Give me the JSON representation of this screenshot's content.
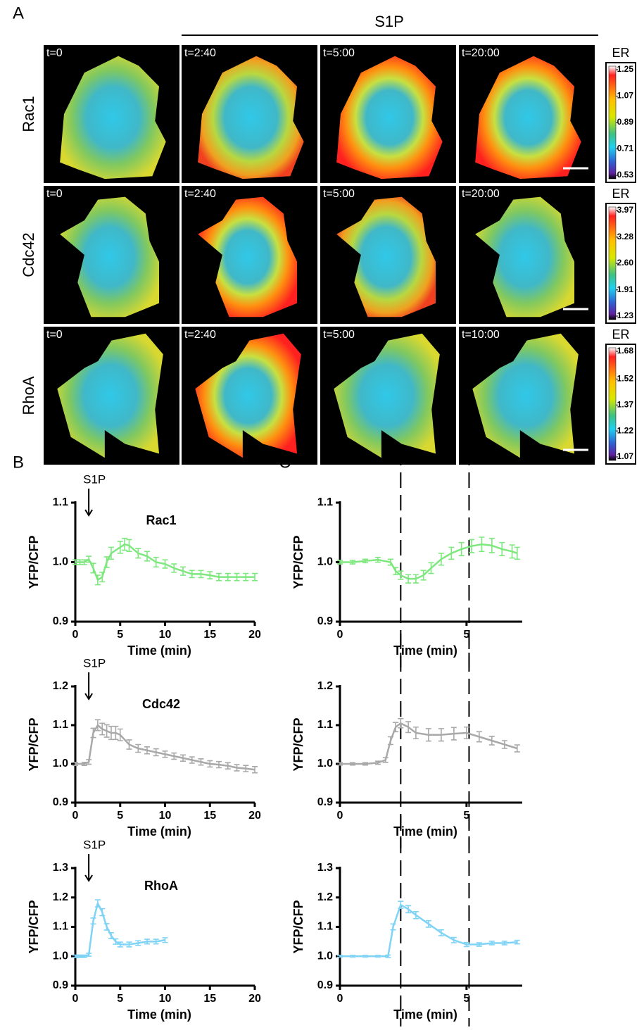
{
  "panel_a": {
    "label": "A",
    "treatment": "S1P",
    "rows": [
      {
        "name": "Rac1",
        "times": [
          "t=0",
          "t=2:40",
          "t=5:00",
          "t=20:00"
        ],
        "colorbar": {
          "title": "ER",
          "ticks": [
            0.53,
            0.71,
            0.89,
            1.07,
            1.25
          ]
        }
      },
      {
        "name": "Cdc42",
        "times": [
          "t=0",
          "t=2:40",
          "t=5:00",
          "t=20:00"
        ],
        "colorbar": {
          "title": "ER",
          "ticks": [
            1.23,
            1.91,
            {
              "value": 2.6,
              "label": "2.60"
            },
            3.28,
            3.97
          ]
        }
      },
      {
        "name": "RhoA",
        "times": [
          "t=0",
          "t=2:40",
          "t=5:00",
          "t=10:00"
        ],
        "colorbar": {
          "title": "ER",
          "ticks": [
            1.07,
            1.22,
            1.37,
            1.52,
            1.68
          ]
        }
      }
    ]
  },
  "panel_b_label": "B",
  "panel_c_label": "C",
  "chart_data": [
    {
      "type": "line",
      "title": "Rac1",
      "xlabel": "Time (min)",
      "ylabel": "YFP/CFP",
      "annotation": {
        "text": "S1P",
        "x": 1.5
      },
      "xlim": [
        0,
        20
      ],
      "xticks": [
        0,
        5,
        10,
        15,
        20
      ],
      "ylim": [
        0.9,
        1.1
      ],
      "yticks": [
        0.9,
        {
          "value": 1.0,
          "label": "1.0"
        },
        1.1
      ],
      "series": [
        {
          "color": "#7ee87e",
          "x": [
            0,
            0.5,
            1,
            1.5,
            2,
            2.5,
            3,
            3.5,
            4,
            5,
            5.5,
            6,
            7,
            8,
            9,
            10,
            11,
            12,
            13,
            14,
            15,
            16,
            17,
            18,
            19,
            20
          ],
          "values": [
            1.0,
            1.0,
            1.0,
            1.005,
            0.99,
            0.97,
            0.975,
            1.0,
            1.015,
            1.025,
            1.03,
            1.028,
            1.015,
            1.01,
            1.0,
            0.997,
            0.99,
            0.985,
            0.98,
            0.98,
            0.978,
            0.975,
            0.975,
            0.975,
            0.975,
            0.975
          ],
          "errors": [
            0.004,
            0.004,
            0.004,
            0.005,
            0.008,
            0.008,
            0.008,
            0.009,
            0.01,
            0.01,
            0.01,
            0.01,
            0.008,
            0.008,
            0.008,
            0.007,
            0.007,
            0.007,
            0.006,
            0.006,
            0.006,
            0.006,
            0.006,
            0.006,
            0.006,
            0.006
          ]
        }
      ]
    },
    {
      "type": "line",
      "xlabel": "Time (min)",
      "ylabel": "YFP/CFP",
      "vlines": [
        2.4,
        5.1
      ],
      "xlim": [
        0,
        7.2
      ],
      "xticks": [
        0,
        5
      ],
      "ylim": [
        0.9,
        1.1
      ],
      "yticks": [
        0.9,
        {
          "value": 1.0,
          "label": "1.0"
        },
        1.1
      ],
      "series": [
        {
          "color": "#7ee87e",
          "x": [
            0,
            0.5,
            1,
            1.5,
            2,
            2.2,
            2.4,
            2.7,
            3,
            3.3,
            3.6,
            4,
            4.4,
            4.8,
            5.2,
            5.6,
            6,
            6.4,
            6.8,
            7
          ],
          "values": [
            1.0,
            1.0,
            1.002,
            1.004,
            1.0,
            0.985,
            0.978,
            0.972,
            0.972,
            0.978,
            0.99,
            1.005,
            1.015,
            1.022,
            1.027,
            1.03,
            1.028,
            1.022,
            1.018,
            1.015
          ],
          "errors": [
            0.003,
            0.003,
            0.003,
            0.004,
            0.005,
            0.006,
            0.007,
            0.007,
            0.007,
            0.008,
            0.009,
            0.01,
            0.01,
            0.011,
            0.011,
            0.012,
            0.012,
            0.011,
            0.011,
            0.01
          ]
        }
      ]
    },
    {
      "type": "line",
      "title": "Cdc42",
      "xlabel": "Time (min)",
      "ylabel": "YFP/CFP",
      "annotation": {
        "text": "S1P",
        "x": 1.5
      },
      "xlim": [
        0,
        20
      ],
      "xticks": [
        0,
        5,
        10,
        15,
        20
      ],
      "ylim": [
        0.9,
        1.2
      ],
      "yticks": [
        0.9,
        {
          "value": 1.0,
          "label": "1.0"
        },
        1.1,
        1.2
      ],
      "series": [
        {
          "color": "#a9a9a9",
          "x": [
            0,
            1,
            1.5,
            2,
            2.5,
            3,
            3.5,
            4,
            4.5,
            5,
            6,
            7,
            8,
            9,
            10,
            11,
            12,
            13,
            14,
            15,
            16,
            17,
            18,
            19,
            20
          ],
          "values": [
            1.0,
            1.0,
            1.005,
            1.08,
            1.1,
            1.09,
            1.085,
            1.08,
            1.08,
            1.075,
            1.05,
            1.04,
            1.035,
            1.03,
            1.025,
            1.02,
            1.015,
            1.01,
            1.005,
            1.0,
            0.998,
            0.995,
            0.99,
            0.988,
            0.985
          ],
          "errors": [
            0.004,
            0.004,
            0.006,
            0.012,
            0.014,
            0.015,
            0.016,
            0.017,
            0.017,
            0.015,
            0.012,
            0.01,
            0.009,
            0.009,
            0.008,
            0.008,
            0.008,
            0.008,
            0.008,
            0.008,
            0.008,
            0.008,
            0.008,
            0.008,
            0.008
          ]
        }
      ]
    },
    {
      "type": "line",
      "xlabel": "Time (min)",
      "ylabel": "YFP/CFP",
      "vlines": [
        2.4,
        5.1
      ],
      "xlim": [
        0,
        7.2
      ],
      "xticks": [
        0,
        5
      ],
      "ylim": [
        0.9,
        1.2
      ],
      "yticks": [
        0.9,
        {
          "value": 1.0,
          "label": "1.0"
        },
        1.1,
        1.2
      ],
      "series": [
        {
          "color": "#a9a9a9",
          "x": [
            0,
            0.5,
            1,
            1.5,
            1.8,
            2,
            2.2,
            2.4,
            2.7,
            3,
            3.5,
            4,
            4.5,
            5,
            5.5,
            6,
            6.5,
            7
          ],
          "values": [
            1.0,
            1.0,
            1.0,
            1.003,
            1.01,
            1.06,
            1.095,
            1.105,
            1.095,
            1.08,
            1.075,
            1.075,
            1.078,
            1.08,
            1.07,
            1.06,
            1.05,
            1.04
          ],
          "errors": [
            0.003,
            0.003,
            0.003,
            0.004,
            0.006,
            0.01,
            0.012,
            0.012,
            0.014,
            0.015,
            0.016,
            0.016,
            0.016,
            0.015,
            0.013,
            0.011,
            0.01,
            0.009
          ]
        }
      ]
    },
    {
      "type": "line",
      "title": "RhoA",
      "xlabel": "Time (min)",
      "ylabel": "YFP/CFP",
      "annotation": {
        "text": "S1P",
        "x": 1.5
      },
      "xlim": [
        0,
        20
      ],
      "xticks": [
        0,
        5,
        10,
        15,
        20
      ],
      "ylim": [
        0.9,
        1.3
      ],
      "yticks": [
        0.9,
        {
          "value": 1.0,
          "label": "1.0"
        },
        1.1,
        1.2,
        1.3
      ],
      "series": [
        {
          "color": "#7fd3f5",
          "x": [
            0,
            0.5,
            1,
            1.5,
            2,
            2.5,
            3,
            3.5,
            4,
            4.5,
            5,
            6,
            7,
            8,
            9,
            10
          ],
          "values": [
            1.0,
            1.0,
            1.0,
            1.005,
            1.12,
            1.18,
            1.15,
            1.1,
            1.07,
            1.05,
            1.04,
            1.04,
            1.045,
            1.05,
            1.05,
            1.055
          ],
          "errors": [
            0.004,
            0.004,
            0.004,
            0.005,
            0.01,
            0.012,
            0.012,
            0.011,
            0.01,
            0.009,
            0.008,
            0.008,
            0.008,
            0.008,
            0.008,
            0.008
          ]
        }
      ]
    },
    {
      "type": "line",
      "xlabel": "Time (min)",
      "ylabel": "YFP/CFP",
      "vlines": [
        2.4,
        5.1
      ],
      "xlim": [
        0,
        7.2
      ],
      "xticks": [
        0,
        5
      ],
      "ylim": [
        0.9,
        1.3
      ],
      "yticks": [
        0.9,
        {
          "value": 1.0,
          "label": "1.0"
        },
        1.1,
        1.2,
        1.3
      ],
      "series": [
        {
          "color": "#7fd3f5",
          "x": [
            0,
            0.5,
            1,
            1.5,
            1.9,
            2.1,
            2.4,
            2.7,
            3,
            3.5,
            4,
            4.5,
            5,
            5.5,
            6,
            6.5,
            7
          ],
          "values": [
            1.0,
            1.0,
            1.0,
            1.0,
            1.0,
            1.1,
            1.175,
            1.16,
            1.14,
            1.11,
            1.08,
            1.055,
            1.04,
            1.04,
            1.045,
            1.045,
            1.048
          ],
          "errors": [
            0.003,
            0.003,
            0.003,
            0.003,
            0.004,
            0.01,
            0.012,
            0.012,
            0.012,
            0.011,
            0.01,
            0.009,
            0.007,
            0.006,
            0.006,
            0.006,
            0.006
          ]
        }
      ]
    }
  ]
}
